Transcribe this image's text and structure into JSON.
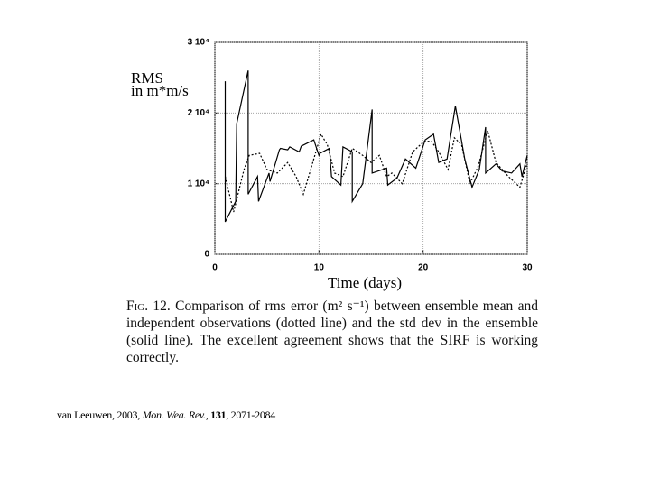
{
  "chart_data": {
    "type": "line",
    "y_label_lines": [
      "RMS",
      "in m*m/s"
    ],
    "x_label": "Time (days)",
    "xlim": [
      0,
      30
    ],
    "xticks": [
      0,
      10,
      20,
      30
    ],
    "ylim": [
      0,
      30000
    ],
    "yticks": [
      0,
      {
        "value": 10000,
        "label": "1 10⁴"
      },
      {
        "value": 20000,
        "label": "2 10⁴"
      },
      {
        "value": 30000,
        "label": "3 10⁴"
      }
    ],
    "grid": true,
    "series": [
      {
        "color": "#000000",
        "line_style": "solid",
        "x": [
          1,
          1,
          2,
          2.1,
          3.2,
          3.2,
          4.1,
          4.2,
          5.2,
          5.3,
          6.2,
          6.3,
          7,
          7.2,
          8.1,
          8.3,
          9.5,
          10,
          10.1,
          11,
          11.2,
          12.1,
          12.3,
          13.2,
          13.2,
          14.2,
          15.1,
          15.1,
          16.5,
          16.6,
          17.5,
          18.3,
          19.3,
          20.2,
          21,
          21.5,
          22.3,
          23.1,
          24,
          24.7,
          25.4,
          26,
          26,
          27,
          27.6,
          28.5,
          29.3,
          29.5,
          30
        ],
        "values": [
          24500,
          4600,
          7500,
          18500,
          26000,
          8500,
          11000,
          7500,
          11500,
          10300,
          14800,
          15000,
          14800,
          15200,
          14500,
          15300,
          16200,
          14000,
          14300,
          15000,
          11000,
          9800,
          15200,
          14500,
          7500,
          10000,
          20500,
          11500,
          12200,
          9800,
          10800,
          13500,
          12200,
          16200,
          17000,
          13000,
          13500,
          21000,
          13500,
          9500,
          12000,
          18000,
          11500,
          12800,
          11800,
          11500,
          12800,
          11000,
          14000
        ]
      },
      {
        "color": "#000000",
        "line_style": "dotted",
        "x": [
          1,
          1.8,
          2.8,
          3.3,
          4.3,
          5,
          6,
          7,
          7.8,
          8.5,
          9.3,
          10.2,
          10.8,
          11.5,
          12.3,
          13.2,
          14.2,
          15,
          15.8,
          16.5,
          17,
          18,
          19,
          20.1,
          20.8,
          21.5,
          22.4,
          23,
          23.7,
          24.5,
          25.3,
          26.2,
          27,
          28.2,
          29.3,
          30
        ],
        "values": [
          11000,
          6000,
          12000,
          14000,
          14300,
          12000,
          11500,
          13000,
          11000,
          8500,
          12500,
          17000,
          15500,
          11500,
          11000,
          15000,
          14000,
          13000,
          14000,
          11000,
          11500,
          10000,
          14500,
          16000,
          16000,
          14500,
          12000,
          16500,
          15500,
          10000,
          12500,
          17500,
          13000,
          11000,
          9500,
          13000
        ]
      }
    ]
  },
  "caption": {
    "label": "Fig. 12.",
    "text": "Comparison of rms error (m² s⁻¹) between ensemble mean and independent observations (dotted line) and the std dev in the ensemble (solid line). The excellent agreement shows that the SIRF is working correctly."
  },
  "citation": {
    "authors": "van Leeuwen, 2003,",
    "journal": "Mon. Wea. Rev.",
    "sep": ",",
    "volume": "131",
    "pages": ", 2071-2084"
  }
}
